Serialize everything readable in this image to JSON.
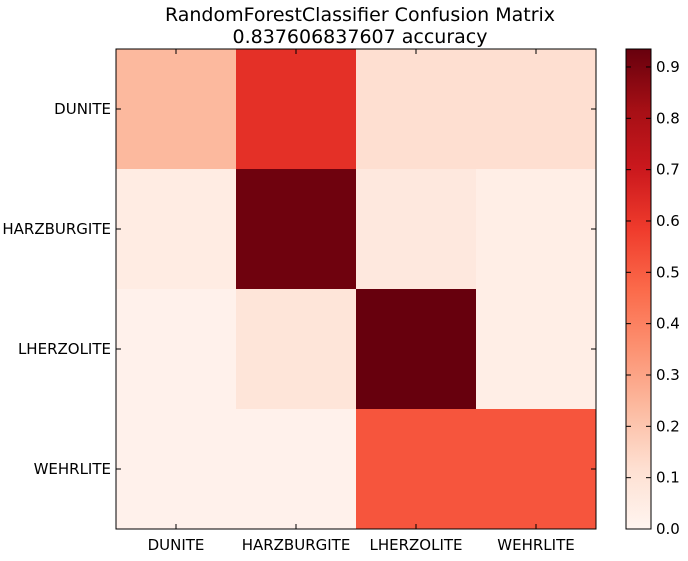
{
  "chart_data": {
    "type": "heatmap",
    "title": "RandomForestClassifier Confusion Matrix",
    "subtitle": "0.837606837607 accuracy",
    "xlabel": "",
    "ylabel": "",
    "x_categories": [
      "DUNITE",
      "HARZBURGITE",
      "LHERZOLITE",
      "WEHRLITE"
    ],
    "y_categories": [
      "DUNITE",
      "HARZBURGITE",
      "LHERZOLITE",
      "WEHRLITE"
    ],
    "values": [
      [
        0.24,
        0.62,
        0.12,
        0.12
      ],
      [
        0.05,
        0.92,
        0.07,
        0.04
      ],
      [
        0.02,
        0.09,
        0.94,
        0.04
      ],
      [
        0.02,
        0.02,
        0.52,
        0.52
      ]
    ],
    "colormap": "Reds",
    "colorbar": {
      "range": [
        0.0,
        0.935
      ],
      "ticks": [
        0.0,
        0.1,
        0.2,
        0.3,
        0.4,
        0.5,
        0.6,
        0.7,
        0.8,
        0.9
      ],
      "tick_labels": [
        "0.0",
        "0.1",
        "0.2",
        "0.3",
        "0.4",
        "0.5",
        "0.6",
        "0.7",
        "0.8",
        "0.9"
      ]
    },
    "colors": [
      "#fff5f0",
      "#fee0d2",
      "#fcbba1",
      "#fc9272",
      "#fb6a4a",
      "#ef3b2c",
      "#cb181d",
      "#a50f15",
      "#67000d"
    ]
  }
}
